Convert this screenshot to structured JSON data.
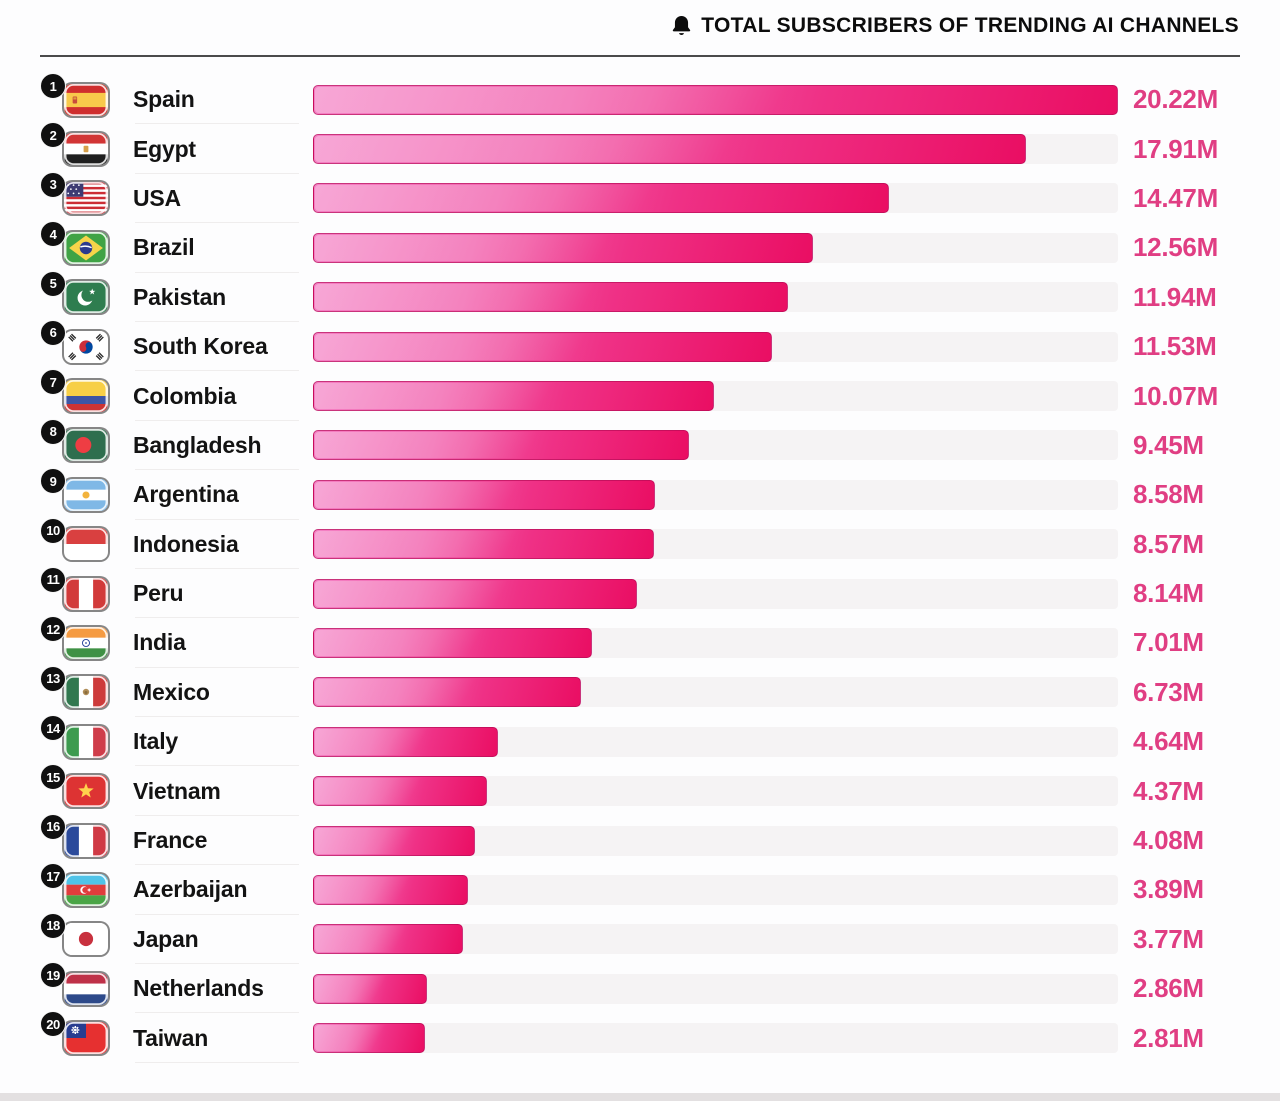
{
  "header": {
    "icon": "bell-icon",
    "title": "TOTAL SUBSCRIBERS OF TRENDING AI CHANNELS"
  },
  "chart_data": {
    "type": "bar",
    "orientation": "horizontal",
    "title": "Total Subscribers of Trending AI Channels",
    "unit": "millions of subscribers",
    "max_value": 20.22,
    "categories": [
      "Spain",
      "Egypt",
      "USA",
      "Brazil",
      "Pakistan",
      "South Korea",
      "Colombia",
      "Bangladesh",
      "Argentina",
      "Indonesia",
      "Peru",
      "India",
      "Mexico",
      "Italy",
      "Vietnam",
      "France",
      "Azerbaijan",
      "Japan",
      "Netherlands",
      "Taiwan"
    ],
    "values": [
      20.22,
      17.91,
      14.47,
      12.56,
      11.94,
      11.53,
      10.07,
      9.45,
      8.58,
      8.57,
      8.14,
      7.01,
      6.73,
      4.64,
      4.37,
      4.08,
      3.89,
      3.77,
      2.86,
      2.81
    ],
    "value_labels": [
      "20.22M",
      "17.91M",
      "14.47M",
      "12.56M",
      "11.94M",
      "11.53M",
      "10.07M",
      "9.45M",
      "8.58M",
      "8.57M",
      "8.14M",
      "7.01M",
      "6.73M",
      "4.64M",
      "4.37M",
      "4.08M",
      "3.89M",
      "3.77M",
      "2.86M",
      "2.81M"
    ],
    "bar_gradient": [
      "#f481c4",
      "#ea0e63"
    ],
    "track_color": "#f5f3f4",
    "value_text_color": "#e03e83",
    "legend": "none",
    "grid": "off"
  },
  "rows": [
    {
      "rank": "1",
      "country": "Spain",
      "flag": "spain-flag-icon",
      "value_label": "20.22M"
    },
    {
      "rank": "2",
      "country": "Egypt",
      "flag": "egypt-flag-icon",
      "value_label": "17.91M"
    },
    {
      "rank": "3",
      "country": "USA",
      "flag": "usa-flag-icon",
      "value_label": "14.47M"
    },
    {
      "rank": "4",
      "country": "Brazil",
      "flag": "brazil-flag-icon",
      "value_label": "12.56M"
    },
    {
      "rank": "5",
      "country": "Pakistan",
      "flag": "pakistan-flag-icon",
      "value_label": "11.94M"
    },
    {
      "rank": "6",
      "country": "South Korea",
      "flag": "south-korea-flag-icon",
      "value_label": "11.53M"
    },
    {
      "rank": "7",
      "country": "Colombia",
      "flag": "colombia-flag-icon",
      "value_label": "10.07M"
    },
    {
      "rank": "8",
      "country": "Bangladesh",
      "flag": "bangladesh-flag-icon",
      "value_label": "9.45M"
    },
    {
      "rank": "9",
      "country": "Argentina",
      "flag": "argentina-flag-icon",
      "value_label": "8.58M"
    },
    {
      "rank": "10",
      "country": "Indonesia",
      "flag": "indonesia-flag-icon",
      "value_label": "8.57M"
    },
    {
      "rank": "11",
      "country": "Peru",
      "flag": "peru-flag-icon",
      "value_label": "8.14M"
    },
    {
      "rank": "12",
      "country": "India",
      "flag": "india-flag-icon",
      "value_label": "7.01M"
    },
    {
      "rank": "13",
      "country": "Mexico",
      "flag": "mexico-flag-icon",
      "value_label": "6.73M"
    },
    {
      "rank": "14",
      "country": "Italy",
      "flag": "italy-flag-icon",
      "value_label": "4.64M"
    },
    {
      "rank": "15",
      "country": "Vietnam",
      "flag": "vietnam-flag-icon",
      "value_label": "4.37M"
    },
    {
      "rank": "16",
      "country": "France",
      "flag": "france-flag-icon",
      "value_label": "4.08M"
    },
    {
      "rank": "17",
      "country": "Azerbaijan",
      "flag": "azerbaijan-flag-icon",
      "value_label": "3.89M"
    },
    {
      "rank": "18",
      "country": "Japan",
      "flag": "japan-flag-icon",
      "value_label": "3.77M"
    },
    {
      "rank": "19",
      "country": "Netherlands",
      "flag": "netherlands-flag-icon",
      "value_label": "2.86M"
    },
    {
      "rank": "20",
      "country": "Taiwan",
      "flag": "taiwan-flag-icon",
      "value_label": "2.81M"
    }
  ]
}
